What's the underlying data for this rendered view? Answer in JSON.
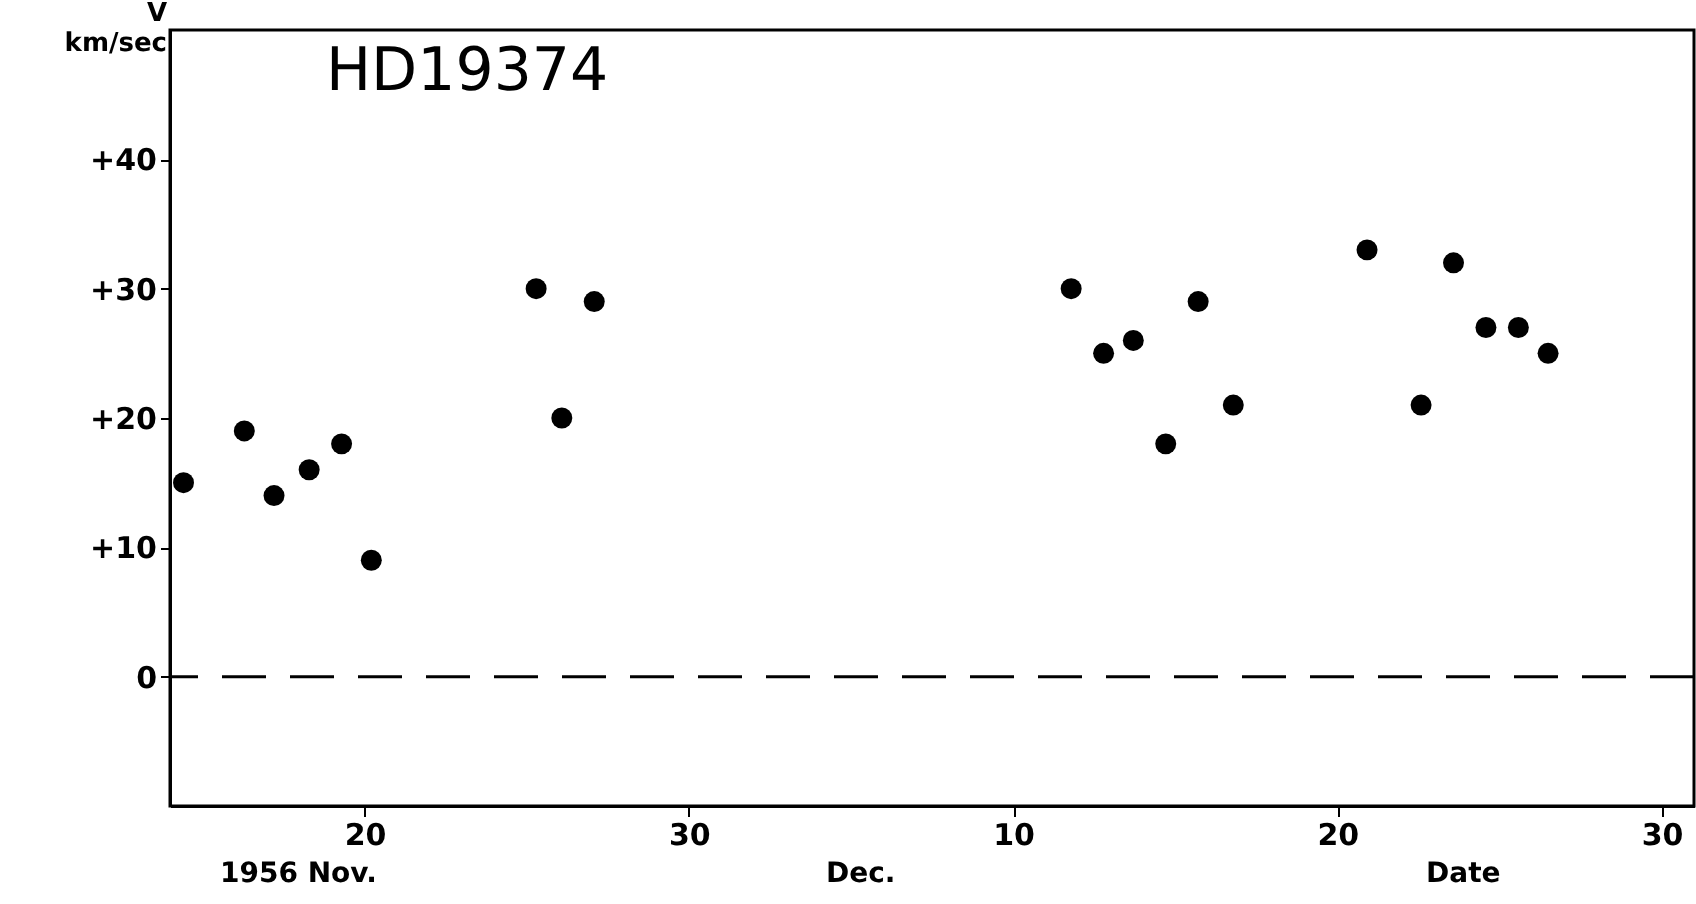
{
  "chart_data": {
    "type": "scatter",
    "title": "HD19374",
    "ylabel": "V\nkm/sec",
    "x": [
      "1956-11-14T10:00",
      "1956-11-16T07:00",
      "1956-11-17T05:00",
      "1956-11-18T07:00",
      "1956-11-19T07:00",
      "1956-11-20T05:00",
      "1956-11-25T07:00",
      "1956-11-26T02:00",
      "1956-11-27T02:00",
      "1956-12-11T19:00",
      "1956-12-12T19:00",
      "1956-12-13T17:00",
      "1956-12-14T17:00",
      "1956-12-15T17:00",
      "1956-12-16T19:00",
      "1956-12-20T22:00",
      "1956-12-22T14:00",
      "1956-12-23T14:00",
      "1956-12-24T14:00",
      "1956-12-25T14:00",
      "1956-12-26T12:00"
    ],
    "series": [
      {
        "color": "#000000",
        "values": [
          15,
          19,
          14,
          16,
          18,
          9,
          30,
          20,
          29,
          30,
          25,
          26,
          18,
          29,
          21,
          33,
          21,
          32,
          27,
          27,
          25
        ]
      }
    ],
    "xlim": [
      "1956-11-14",
      "1956-12-31"
    ],
    "xticks": [
      {
        "value": "1956-11-20",
        "label": "20"
      },
      {
        "value": "1956-11-30",
        "label": "30"
      },
      {
        "value": "1956-12-10",
        "label": "10"
      },
      {
        "value": "1956-12-20",
        "label": "20"
      },
      {
        "value": "1956-12-30",
        "label": "30"
      }
    ],
    "ylim": [
      -10,
      50
    ],
    "yticks": [
      {
        "value": 0,
        "label": "0"
      },
      {
        "value": 10,
        "label": "+10"
      },
      {
        "value": 20,
        "label": "+20"
      },
      {
        "value": 30,
        "label": "+30"
      },
      {
        "value": 40,
        "label": "+40"
      }
    ],
    "ref_lines": [
      {
        "axis": "y",
        "value": 0,
        "line_style": "dashed",
        "color": "#000000"
      }
    ],
    "annotations": [
      "1956 Nov.",
      "Dec.",
      "Date"
    ],
    "grid": false
  }
}
